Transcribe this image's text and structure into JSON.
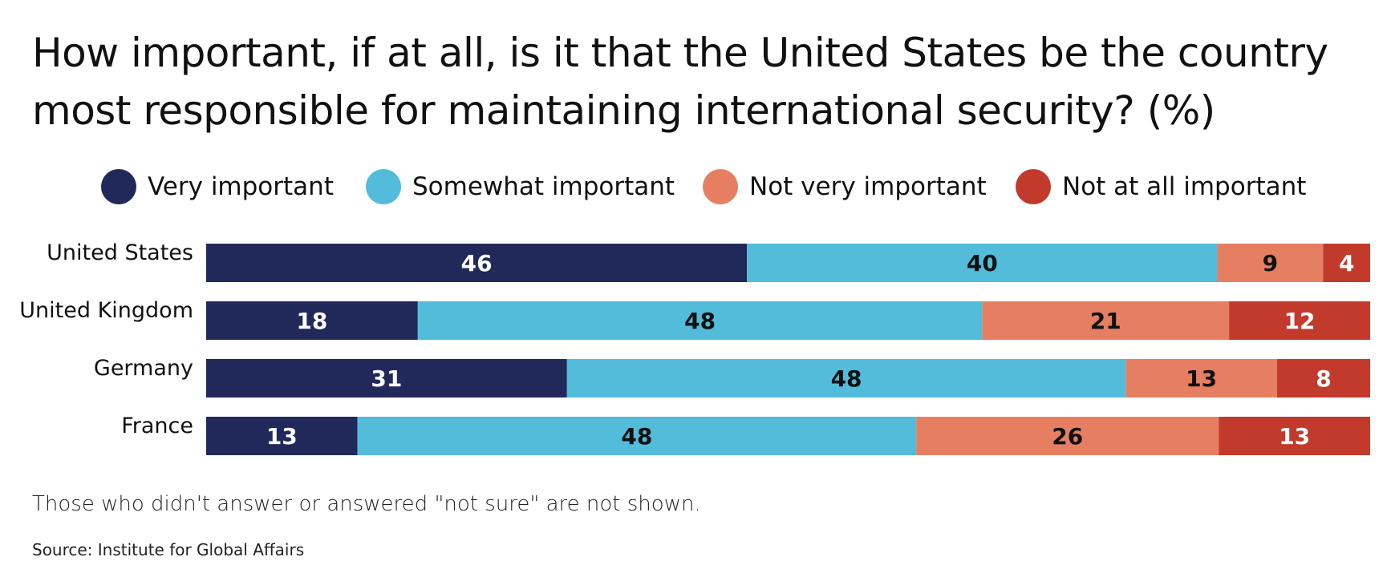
{
  "chart_data": {
    "type": "bar",
    "orientation": "horizontal-stacked-100",
    "title": "How important, if at all, is it that the United States be the country most responsible for maintaining international security? (%)",
    "categories": [
      "United States",
      "United Kingdom",
      "Germany",
      "France"
    ],
    "series": [
      {
        "name": "Very important",
        "color": "#21295a",
        "label_color": "#ffffff",
        "values": [
          46,
          18,
          31,
          13
        ]
      },
      {
        "name": "Somewhat important",
        "color": "#53bcdb",
        "label_color": "#111111",
        "values": [
          40,
          48,
          48,
          48
        ]
      },
      {
        "name": "Not very important",
        "color": "#e67f61",
        "label_color": "#111111",
        "values": [
          9,
          21,
          13,
          26
        ]
      },
      {
        "name": "Not at all important",
        "color": "#c23a2c",
        "label_color": "#ffffff",
        "values": [
          4,
          12,
          8,
          13
        ]
      }
    ],
    "legend": "top",
    "grid": false,
    "xlabel": "",
    "ylabel": "",
    "note": "Those who didn't answer or answered \"not sure\" are not shown.",
    "source": "Source: Institute for Global Affairs"
  }
}
